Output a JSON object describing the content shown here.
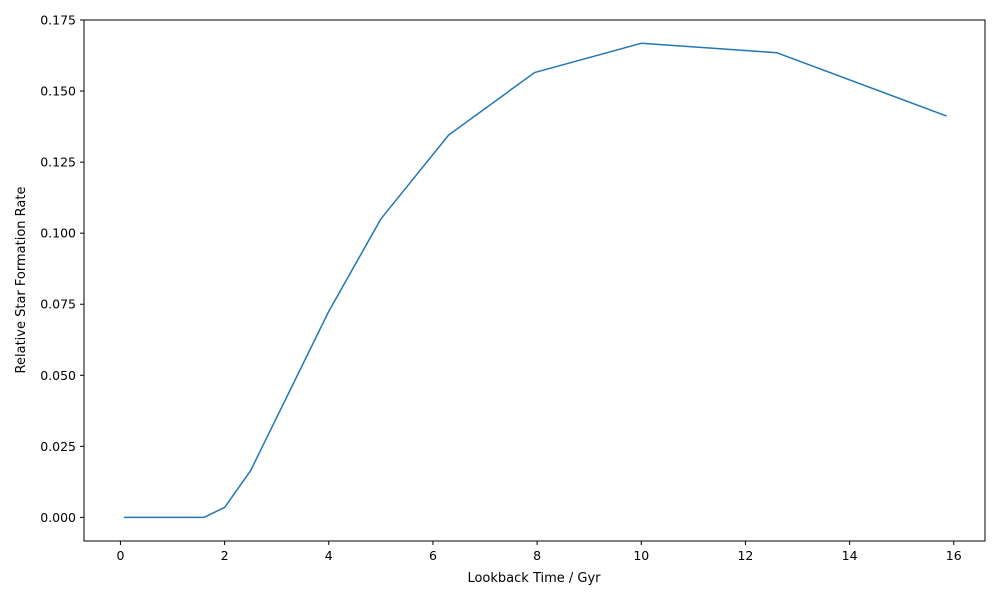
{
  "chart_data": {
    "type": "line",
    "title": "",
    "xlabel": "Lookback Time / Gyr",
    "ylabel": "Relative Star Formation Rate",
    "xlim": [
      -0.7,
      16.6
    ],
    "ylim": [
      -0.0083,
      0.175
    ],
    "xticks": [
      0,
      2,
      4,
      6,
      8,
      10,
      12,
      14,
      16
    ],
    "xtick_labels": [
      "0",
      "2",
      "4",
      "6",
      "8",
      "10",
      "12",
      "14",
      "16"
    ],
    "yticks": [
      0.0,
      0.025,
      0.05,
      0.075,
      0.1,
      0.125,
      0.15,
      0.175
    ],
    "ytick_labels": [
      "0.000",
      "0.025",
      "0.050",
      "0.075",
      "0.100",
      "0.125",
      "0.150",
      "0.175"
    ],
    "grid": false,
    "legend": "none",
    "series": [
      {
        "color": "#1f77b4",
        "x": [
          0.08,
          1.6,
          2.0,
          2.5,
          4.0,
          5.0,
          6.3,
          7.95,
          10.0,
          12.6,
          15.85
        ],
        "y": [
          0.0,
          0.0,
          0.0035,
          0.0165,
          0.0725,
          0.105,
          0.1345,
          0.1565,
          0.1668,
          0.1635,
          0.1413
        ]
      }
    ]
  }
}
